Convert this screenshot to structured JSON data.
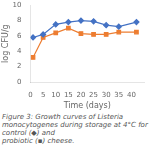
{
  "chart_data": {
    "type": "line",
    "xlabel": "Time (days)",
    "ylabel": "log CFU/g",
    "annotations": [
      "Figure 3: Growth curves of Listeria monocytogenes during storage at 4°C for control (◆) and",
      "probiotic (▪) cheese."
    ],
    "x": [
      1,
      5,
      10,
      15,
      20,
      25,
      30,
      35,
      42
    ],
    "series": [
      {
        "color": "#4472C4",
        "marker": "diamond",
        "values": [
          5.8,
          6.2,
          7.5,
          7.8,
          8.0,
          7.9,
          7.4,
          7.2,
          7.8
        ]
      },
      {
        "color": "#ED7D31",
        "marker": "square",
        "values": [
          3.2,
          5.8,
          6.4,
          7.0,
          6.3,
          6.2,
          6.2,
          6.5,
          6.5
        ]
      }
    ],
    "xlim": [
      0,
      45
    ],
    "ylim": [
      0,
      10
    ],
    "xticks": [
      0,
      5,
      10,
      15,
      20,
      25,
      30,
      35,
      40
    ],
    "yticks": [
      0,
      2,
      4,
      6,
      8,
      10
    ],
    "grid": false,
    "legend": false
  }
}
